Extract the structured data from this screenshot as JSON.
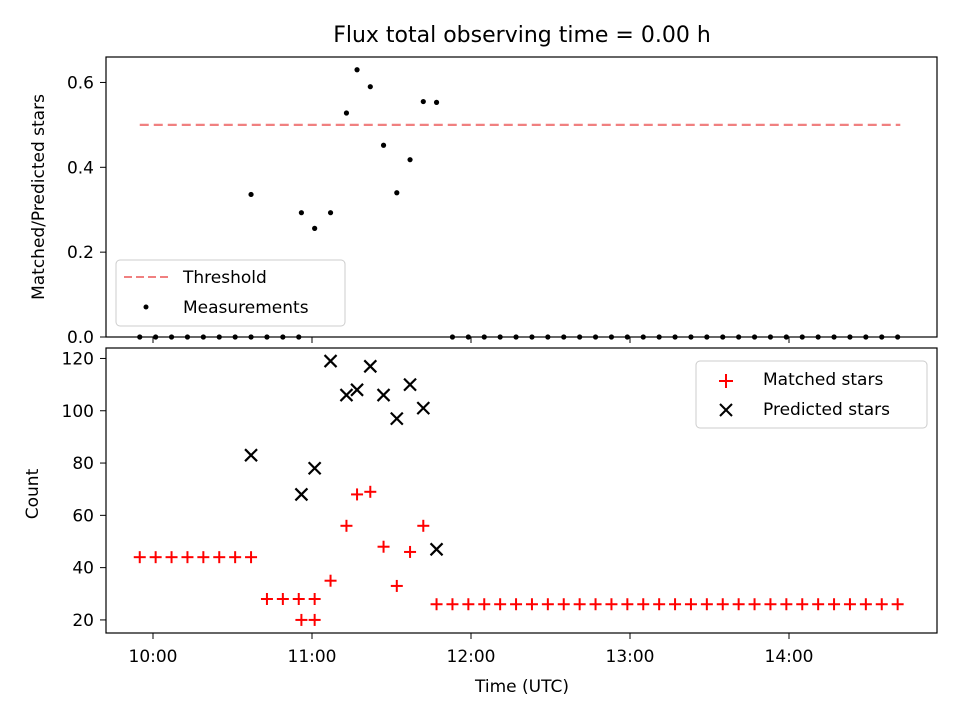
{
  "figure": {
    "title": "Flux total observing time = 0.00 h"
  },
  "chart_data": [
    {
      "type": "scatter",
      "panel": "top",
      "ylabel": "Matched/Predicted stars",
      "xlabel": "",
      "ylim": [
        0,
        0.66
      ],
      "yticks": [
        0.0,
        0.2,
        0.4,
        0.6
      ],
      "ytick_labels": [
        "0.0",
        "0.2",
        "0.4",
        "0.6"
      ],
      "grid": false,
      "legend_position": "lower-left",
      "threshold": {
        "name": "Threshold",
        "value": 0.5,
        "x_start": "09:55",
        "x_end": "14:42",
        "color": "#f08080",
        "style": "dashed"
      },
      "series": [
        {
          "name": "Measurements",
          "color": "#000000",
          "marker": "dot",
          "points": [
            {
              "x": "09:55",
              "y": 0.0
            },
            {
              "x": "10:01",
              "y": 0.0
            },
            {
              "x": "10:07",
              "y": 0.0
            },
            {
              "x": "10:13",
              "y": 0.0
            },
            {
              "x": "10:19",
              "y": 0.0
            },
            {
              "x": "10:25",
              "y": 0.0
            },
            {
              "x": "10:31",
              "y": 0.0
            },
            {
              "x": "10:37",
              "y": 0.0
            },
            {
              "x": "10:37",
              "y": 0.336
            },
            {
              "x": "10:43",
              "y": 0.0
            },
            {
              "x": "10:49",
              "y": 0.0
            },
            {
              "x": "10:55",
              "y": 0.0
            },
            {
              "x": "10:56",
              "y": 0.293
            },
            {
              "x": "11:01",
              "y": 0.256
            },
            {
              "x": "11:07",
              "y": 0.293
            },
            {
              "x": "11:13",
              "y": 0.528
            },
            {
              "x": "11:17",
              "y": 0.63
            },
            {
              "x": "11:22",
              "y": 0.59
            },
            {
              "x": "11:27",
              "y": 0.452
            },
            {
              "x": "11:32",
              "y": 0.34
            },
            {
              "x": "11:37",
              "y": 0.418
            },
            {
              "x": "11:42",
              "y": 0.555
            },
            {
              "x": "11:47",
              "y": 0.553
            },
            {
              "x": "11:53",
              "y": 0.0
            },
            {
              "x": "11:59",
              "y": 0.0
            },
            {
              "x": "12:05",
              "y": 0.0
            },
            {
              "x": "12:11",
              "y": 0.0
            },
            {
              "x": "12:17",
              "y": 0.0
            },
            {
              "x": "12:23",
              "y": 0.0
            },
            {
              "x": "12:29",
              "y": 0.0
            },
            {
              "x": "12:35",
              "y": 0.0
            },
            {
              "x": "12:41",
              "y": 0.0
            },
            {
              "x": "12:47",
              "y": 0.0
            },
            {
              "x": "12:53",
              "y": 0.0
            },
            {
              "x": "12:59",
              "y": 0.0
            },
            {
              "x": "13:05",
              "y": 0.0
            },
            {
              "x": "13:11",
              "y": 0.0
            },
            {
              "x": "13:17",
              "y": 0.0
            },
            {
              "x": "13:23",
              "y": 0.0
            },
            {
              "x": "13:29",
              "y": 0.0
            },
            {
              "x": "13:35",
              "y": 0.0
            },
            {
              "x": "13:41",
              "y": 0.0
            },
            {
              "x": "13:47",
              "y": 0.0
            },
            {
              "x": "13:53",
              "y": 0.0
            },
            {
              "x": "13:59",
              "y": 0.0
            },
            {
              "x": "14:05",
              "y": 0.0
            },
            {
              "x": "14:11",
              "y": 0.0
            },
            {
              "x": "14:17",
              "y": 0.0
            },
            {
              "x": "14:23",
              "y": 0.0
            },
            {
              "x": "14:29",
              "y": 0.0
            },
            {
              "x": "14:35",
              "y": 0.0
            },
            {
              "x": "14:41",
              "y": 0.0
            }
          ]
        }
      ]
    },
    {
      "type": "scatter",
      "panel": "bottom",
      "xlabel": "Time (UTC)",
      "ylabel": "Count",
      "xlim": [
        "09:42",
        "15:05"
      ],
      "ylim": [
        15,
        124
      ],
      "xticks": [
        "10:00",
        "11:00",
        "12:00",
        "13:00",
        "14:00"
      ],
      "yticks": [
        20,
        40,
        60,
        80,
        100,
        120
      ],
      "ytick_labels": [
        "20",
        "40",
        "60",
        "80",
        "100",
        "120"
      ],
      "grid": false,
      "legend_position": "upper-right",
      "series": [
        {
          "name": "Matched stars",
          "color": "#ff0000",
          "marker": "plus",
          "points": [
            {
              "x": "09:55",
              "y": 44
            },
            {
              "x": "10:01",
              "y": 44
            },
            {
              "x": "10:07",
              "y": 44
            },
            {
              "x": "10:13",
              "y": 44
            },
            {
              "x": "10:19",
              "y": 44
            },
            {
              "x": "10:25",
              "y": 44
            },
            {
              "x": "10:31",
              "y": 44
            },
            {
              "x": "10:37",
              "y": 44
            },
            {
              "x": "10:43",
              "y": 28
            },
            {
              "x": "10:49",
              "y": 28
            },
            {
              "x": "10:55",
              "y": 28
            },
            {
              "x": "11:01",
              "y": 28
            },
            {
              "x": "10:56",
              "y": 20
            },
            {
              "x": "11:01",
              "y": 20
            },
            {
              "x": "11:07",
              "y": 35
            },
            {
              "x": "11:13",
              "y": 56
            },
            {
              "x": "11:17",
              "y": 68
            },
            {
              "x": "11:22",
              "y": 69
            },
            {
              "x": "11:27",
              "y": 48
            },
            {
              "x": "11:32",
              "y": 33
            },
            {
              "x": "11:37",
              "y": 46
            },
            {
              "x": "11:42",
              "y": 56
            },
            {
              "x": "11:47",
              "y": 26
            },
            {
              "x": "11:53",
              "y": 26
            },
            {
              "x": "11:59",
              "y": 26
            },
            {
              "x": "12:05",
              "y": 26
            },
            {
              "x": "12:11",
              "y": 26
            },
            {
              "x": "12:17",
              "y": 26
            },
            {
              "x": "12:23",
              "y": 26
            },
            {
              "x": "12:29",
              "y": 26
            },
            {
              "x": "12:35",
              "y": 26
            },
            {
              "x": "12:41",
              "y": 26
            },
            {
              "x": "12:47",
              "y": 26
            },
            {
              "x": "12:53",
              "y": 26
            },
            {
              "x": "12:59",
              "y": 26
            },
            {
              "x": "13:05",
              "y": 26
            },
            {
              "x": "13:11",
              "y": 26
            },
            {
              "x": "13:17",
              "y": 26
            },
            {
              "x": "13:23",
              "y": 26
            },
            {
              "x": "13:29",
              "y": 26
            },
            {
              "x": "13:35",
              "y": 26
            },
            {
              "x": "13:41",
              "y": 26
            },
            {
              "x": "13:47",
              "y": 26
            },
            {
              "x": "13:53",
              "y": 26
            },
            {
              "x": "13:59",
              "y": 26
            },
            {
              "x": "14:05",
              "y": 26
            },
            {
              "x": "14:11",
              "y": 26
            },
            {
              "x": "14:17",
              "y": 26
            },
            {
              "x": "14:23",
              "y": 26
            },
            {
              "x": "14:29",
              "y": 26
            },
            {
              "x": "14:35",
              "y": 26
            },
            {
              "x": "14:41",
              "y": 26
            }
          ]
        },
        {
          "name": "Predicted stars",
          "color": "#000000",
          "marker": "x",
          "points": [
            {
              "x": "10:37",
              "y": 83
            },
            {
              "x": "10:56",
              "y": 68
            },
            {
              "x": "11:01",
              "y": 78
            },
            {
              "x": "11:07",
              "y": 119
            },
            {
              "x": "11:13",
              "y": 106
            },
            {
              "x": "11:17",
              "y": 108
            },
            {
              "x": "11:22",
              "y": 117
            },
            {
              "x": "11:27",
              "y": 106
            },
            {
              "x": "11:32",
              "y": 97
            },
            {
              "x": "11:37",
              "y": 110
            },
            {
              "x": "11:42",
              "y": 101
            },
            {
              "x": "11:47",
              "y": 47
            }
          ]
        }
      ]
    }
  ]
}
